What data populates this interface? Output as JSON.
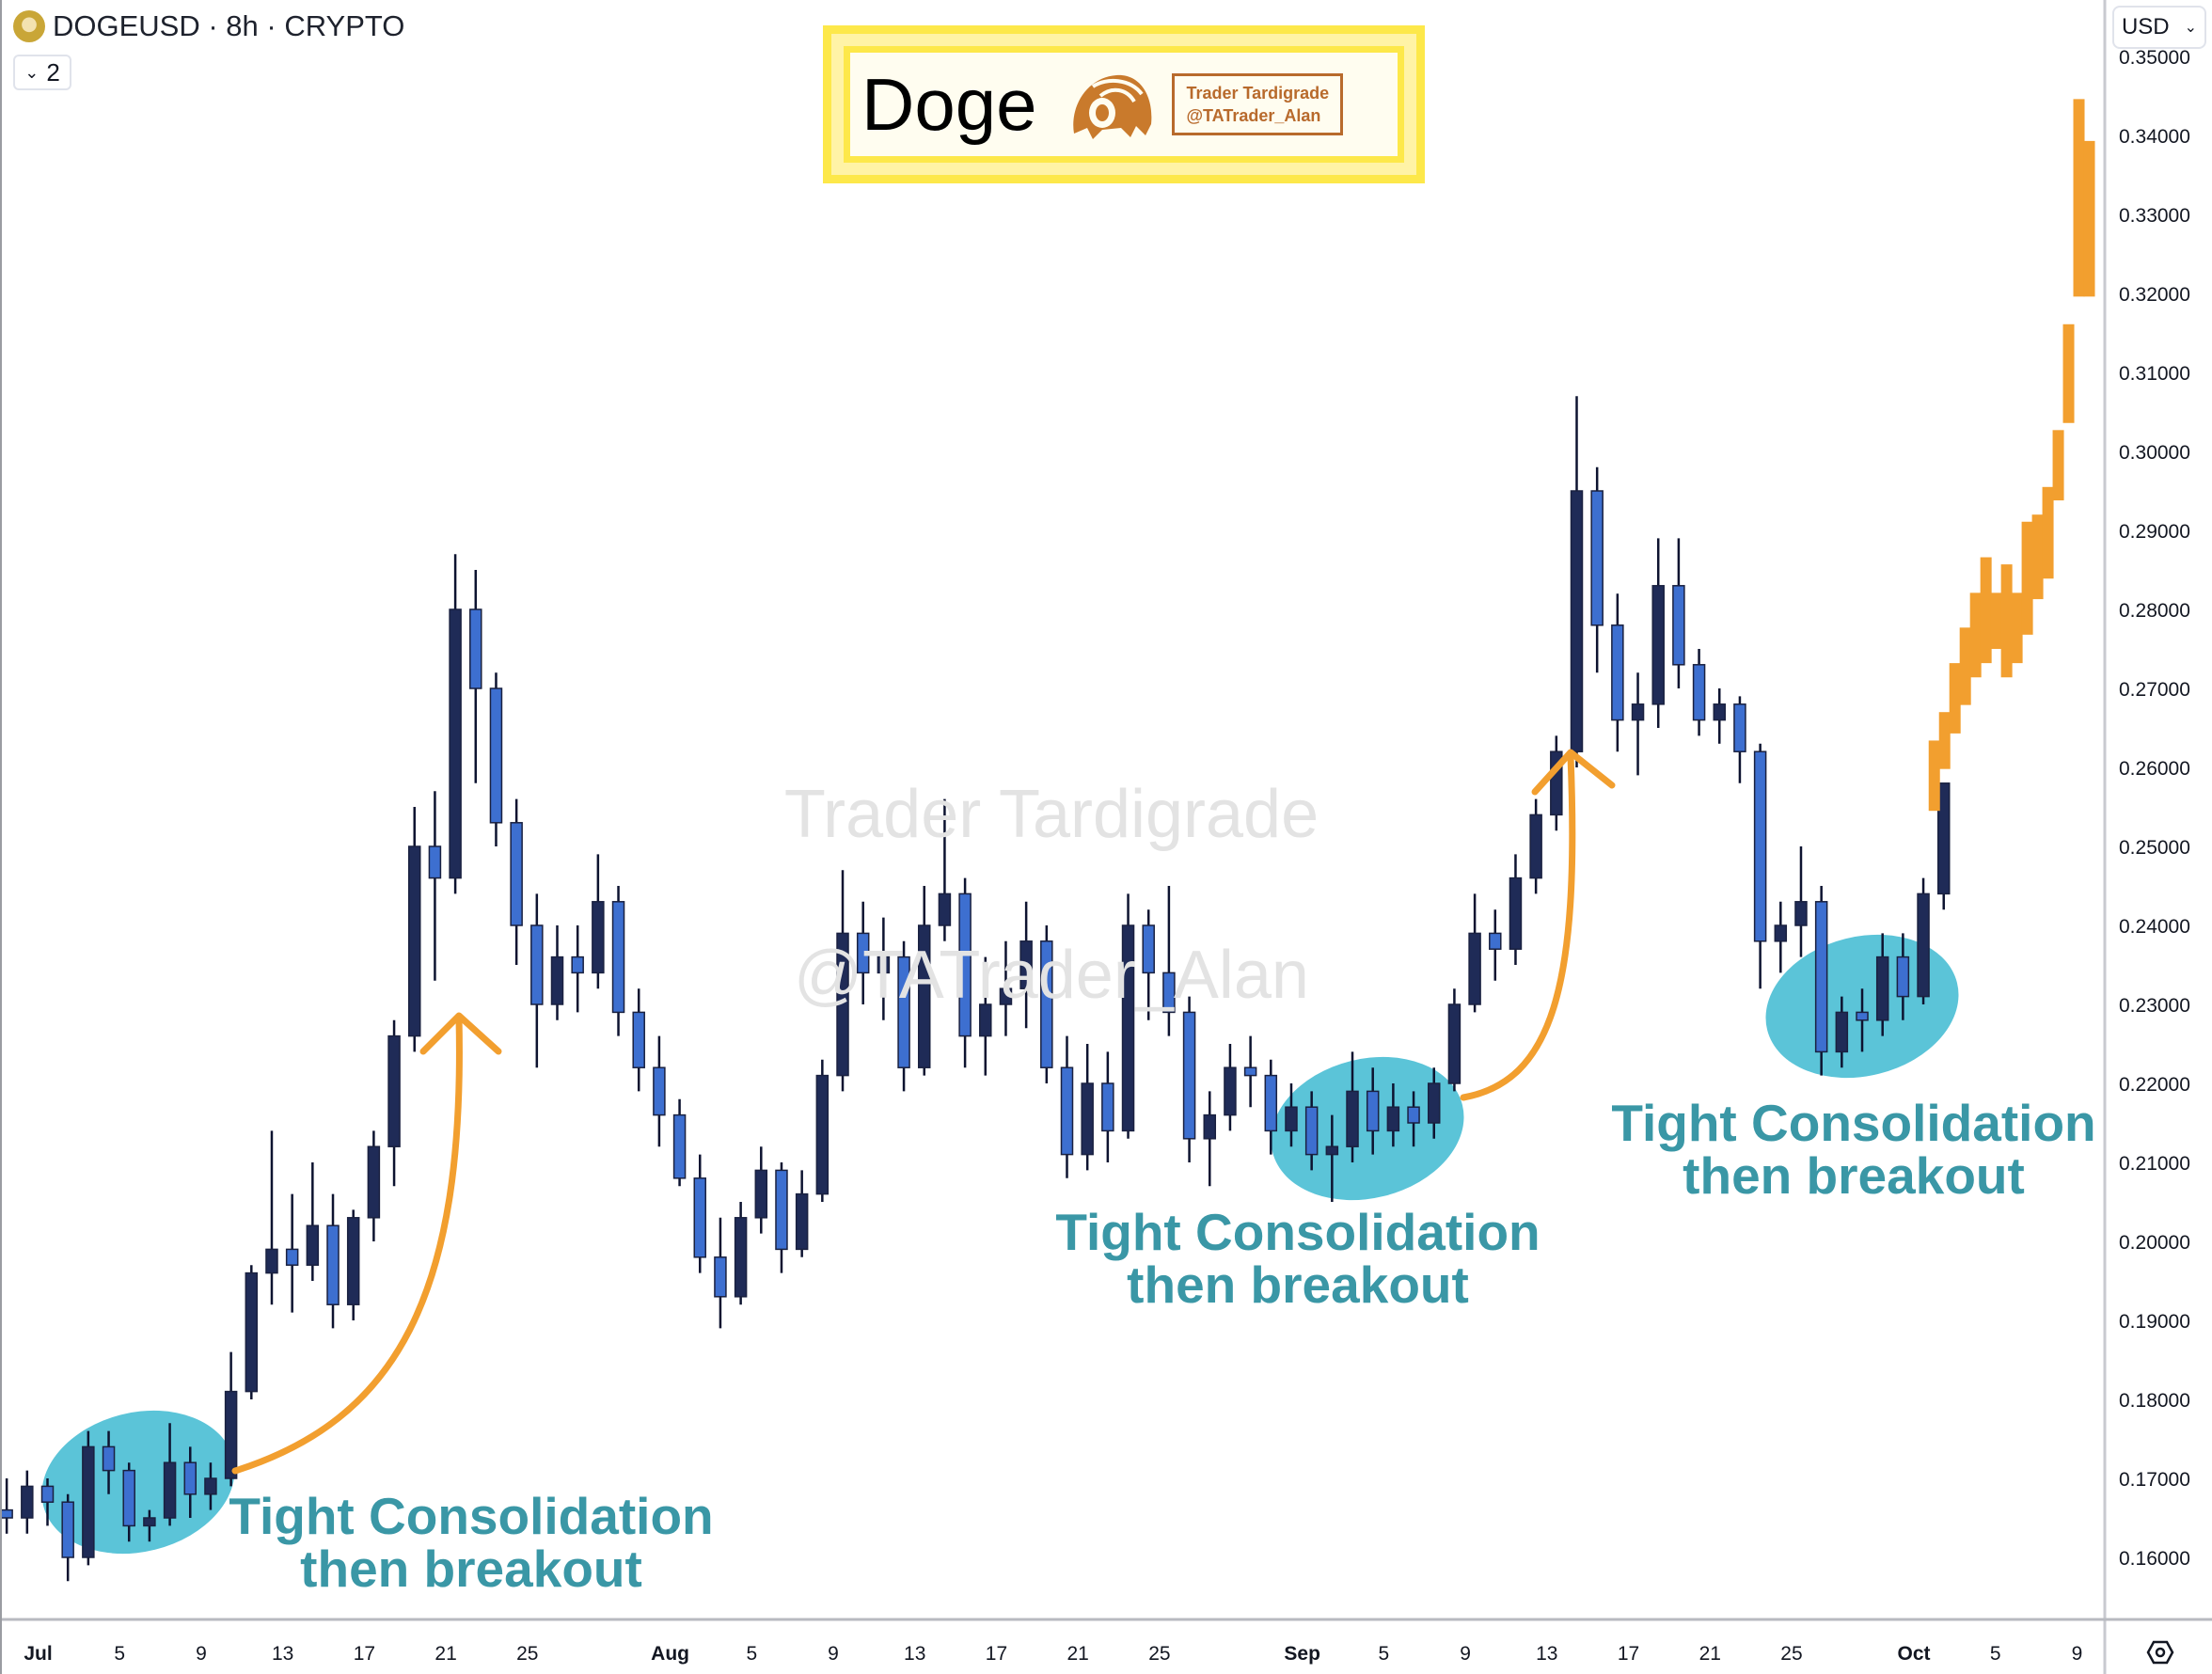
{
  "header": {
    "symbol_title": "DOGEUSD · 8h · CRYPTO",
    "indicator_count": "2",
    "currency": "USD"
  },
  "logo": {
    "title": "Doge",
    "brand_line1": "Trader Tardigrade",
    "brand_line2": "@TATrader_Alan"
  },
  "watermark": {
    "line1": "Trader Tardigrade",
    "line2": "@TATrader_Alan"
  },
  "annotations": [
    {
      "line1": "Tight Consolidation",
      "line2": "then breakout"
    },
    {
      "line1": "Tight Consolidation",
      "line2": "then breakout"
    },
    {
      "line1": "Tight Consolidation",
      "line2": "then breakout"
    }
  ],
  "colors": {
    "candle_up": "#1f2b57",
    "candle_down": "#3d6fd0",
    "projection": "#f29f2f",
    "highlight": "#5bc4d8",
    "annotation_text": "#3a97a6",
    "arrow": "#f29f2f"
  },
  "chart_data": {
    "type": "candlestick",
    "title": "",
    "xlabel": "",
    "ylabel": "",
    "ylim": [
      0.155,
      0.35
    ],
    "y_ticks": [
      "0.16000",
      "0.17000",
      "0.18000",
      "0.19000",
      "0.20000",
      "0.21000",
      "0.22000",
      "0.23000",
      "0.24000",
      "0.25000",
      "0.26000",
      "0.27000",
      "0.28000",
      "0.29000",
      "0.30000",
      "0.31000",
      "0.32000",
      "0.33000",
      "0.34000",
      "0.35000"
    ],
    "x_ticks": [
      {
        "label": "Jul",
        "date": "Jul 1"
      },
      {
        "label": "5",
        "date": "Jul 5"
      },
      {
        "label": "9",
        "date": "Jul 9"
      },
      {
        "label": "13",
        "date": "Jul 13"
      },
      {
        "label": "17",
        "date": "Jul 17"
      },
      {
        "label": "21",
        "date": "Jul 21"
      },
      {
        "label": "25",
        "date": "Jul 25"
      },
      {
        "label": "Aug",
        "date": "Aug 1"
      },
      {
        "label": "5",
        "date": "Aug 5"
      },
      {
        "label": "9",
        "date": "Aug 9"
      },
      {
        "label": "13",
        "date": "Aug 13"
      },
      {
        "label": "17",
        "date": "Aug 17"
      },
      {
        "label": "21",
        "date": "Aug 21"
      },
      {
        "label": "25",
        "date": "Aug 25"
      },
      {
        "label": "Sep",
        "date": "Sep 1"
      },
      {
        "label": "5",
        "date": "Sep 5"
      },
      {
        "label": "9",
        "date": "Sep 9"
      },
      {
        "label": "13",
        "date": "Sep 13"
      },
      {
        "label": "17",
        "date": "Sep 17"
      },
      {
        "label": "21",
        "date": "Sep 21"
      },
      {
        "label": "25",
        "date": "Sep 25"
      },
      {
        "label": "Oct",
        "date": "Oct 1"
      },
      {
        "label": "5",
        "date": "Oct 5"
      },
      {
        "label": "9",
        "date": "Oct 9"
      }
    ],
    "candles_start": "Jun 29",
    "candles_ohlc": [
      [
        0.166,
        0.17,
        0.163,
        0.165
      ],
      [
        0.165,
        0.171,
        0.163,
        0.169
      ],
      [
        0.169,
        0.17,
        0.164,
        0.167
      ],
      [
        0.167,
        0.168,
        0.157,
        0.16
      ],
      [
        0.16,
        0.176,
        0.159,
        0.174
      ],
      [
        0.174,
        0.176,
        0.168,
        0.171
      ],
      [
        0.171,
        0.172,
        0.162,
        0.164
      ],
      [
        0.164,
        0.166,
        0.162,
        0.165
      ],
      [
        0.165,
        0.177,
        0.164,
        0.172
      ],
      [
        0.172,
        0.174,
        0.165,
        0.168
      ],
      [
        0.168,
        0.172,
        0.166,
        0.17
      ],
      [
        0.17,
        0.186,
        0.169,
        0.181
      ],
      [
        0.181,
        0.197,
        0.18,
        0.196
      ],
      [
        0.196,
        0.214,
        0.192,
        0.199
      ],
      [
        0.199,
        0.206,
        0.191,
        0.197
      ],
      [
        0.197,
        0.21,
        0.195,
        0.202
      ],
      [
        0.202,
        0.206,
        0.189,
        0.192
      ],
      [
        0.192,
        0.204,
        0.19,
        0.203
      ],
      [
        0.203,
        0.214,
        0.2,
        0.212
      ],
      [
        0.212,
        0.228,
        0.207,
        0.226
      ],
      [
        0.226,
        0.255,
        0.224,
        0.25
      ],
      [
        0.25,
        0.257,
        0.233,
        0.246
      ],
      [
        0.246,
        0.287,
        0.244,
        0.28
      ],
      [
        0.28,
        0.285,
        0.258,
        0.27
      ],
      [
        0.27,
        0.272,
        0.25,
        0.253
      ],
      [
        0.253,
        0.256,
        0.235,
        0.24
      ],
      [
        0.24,
        0.244,
        0.222,
        0.23
      ],
      [
        0.23,
        0.24,
        0.228,
        0.236
      ],
      [
        0.236,
        0.24,
        0.229,
        0.234
      ],
      [
        0.234,
        0.249,
        0.232,
        0.243
      ],
      [
        0.243,
        0.245,
        0.226,
        0.229
      ],
      [
        0.229,
        0.232,
        0.219,
        0.222
      ],
      [
        0.222,
        0.226,
        0.212,
        0.216
      ],
      [
        0.216,
        0.218,
        0.207,
        0.208
      ],
      [
        0.208,
        0.211,
        0.196,
        0.198
      ],
      [
        0.198,
        0.203,
        0.189,
        0.193
      ],
      [
        0.193,
        0.205,
        0.192,
        0.203
      ],
      [
        0.203,
        0.212,
        0.201,
        0.209
      ],
      [
        0.209,
        0.21,
        0.196,
        0.199
      ],
      [
        0.199,
        0.209,
        0.198,
        0.206
      ],
      [
        0.206,
        0.223,
        0.205,
        0.221
      ],
      [
        0.221,
        0.247,
        0.219,
        0.239
      ],
      [
        0.239,
        0.243,
        0.23,
        0.234
      ],
      [
        0.234,
        0.241,
        0.228,
        0.236
      ],
      [
        0.236,
        0.238,
        0.219,
        0.222
      ],
      [
        0.222,
        0.245,
        0.221,
        0.24
      ],
      [
        0.24,
        0.256,
        0.238,
        0.244
      ],
      [
        0.244,
        0.246,
        0.222,
        0.226
      ],
      [
        0.226,
        0.236,
        0.221,
        0.23
      ],
      [
        0.23,
        0.238,
        0.226,
        0.232
      ],
      [
        0.232,
        0.243,
        0.227,
        0.238
      ],
      [
        0.238,
        0.24,
        0.22,
        0.222
      ],
      [
        0.222,
        0.226,
        0.208,
        0.211
      ],
      [
        0.211,
        0.225,
        0.209,
        0.22
      ],
      [
        0.22,
        0.224,
        0.21,
        0.214
      ],
      [
        0.214,
        0.244,
        0.213,
        0.24
      ],
      [
        0.24,
        0.242,
        0.228,
        0.234
      ],
      [
        0.234,
        0.245,
        0.226,
        0.229
      ],
      [
        0.229,
        0.231,
        0.21,
        0.213
      ],
      [
        0.213,
        0.219,
        0.207,
        0.216
      ],
      [
        0.216,
        0.225,
        0.214,
        0.222
      ],
      [
        0.222,
        0.226,
        0.217,
        0.221
      ],
      [
        0.221,
        0.223,
        0.211,
        0.214
      ],
      [
        0.214,
        0.22,
        0.212,
        0.217
      ],
      [
        0.217,
        0.219,
        0.209,
        0.211
      ],
      [
        0.211,
        0.216,
        0.205,
        0.212
      ],
      [
        0.212,
        0.224,
        0.21,
        0.219
      ],
      [
        0.219,
        0.222,
        0.211,
        0.214
      ],
      [
        0.214,
        0.22,
        0.212,
        0.217
      ],
      [
        0.217,
        0.219,
        0.212,
        0.215
      ],
      [
        0.215,
        0.222,
        0.213,
        0.22
      ],
      [
        0.22,
        0.232,
        0.219,
        0.23
      ],
      [
        0.23,
        0.244,
        0.229,
        0.239
      ],
      [
        0.239,
        0.242,
        0.233,
        0.237
      ],
      [
        0.237,
        0.249,
        0.235,
        0.246
      ],
      [
        0.246,
        0.256,
        0.244,
        0.254
      ],
      [
        0.254,
        0.264,
        0.252,
        0.262
      ],
      [
        0.262,
        0.307,
        0.26,
        0.295
      ],
      [
        0.295,
        0.298,
        0.272,
        0.278
      ],
      [
        0.278,
        0.282,
        0.262,
        0.266
      ],
      [
        0.266,
        0.272,
        0.259,
        0.268
      ],
      [
        0.268,
        0.289,
        0.265,
        0.283
      ],
      [
        0.283,
        0.289,
        0.27,
        0.273
      ],
      [
        0.273,
        0.275,
        0.264,
        0.266
      ],
      [
        0.266,
        0.27,
        0.263,
        0.268
      ],
      [
        0.268,
        0.269,
        0.258,
        0.262
      ],
      [
        0.262,
        0.263,
        0.232,
        0.238
      ],
      [
        0.238,
        0.243,
        0.234,
        0.24
      ],
      [
        0.24,
        0.25,
        0.236,
        0.243
      ],
      [
        0.243,
        0.245,
        0.221,
        0.224
      ],
      [
        0.224,
        0.231,
        0.222,
        0.229
      ],
      [
        0.229,
        0.232,
        0.224,
        0.228
      ],
      [
        0.228,
        0.239,
        0.226,
        0.236
      ],
      [
        0.236,
        0.239,
        0.228,
        0.231
      ],
      [
        0.231,
        0.246,
        0.23,
        0.244
      ],
      [
        0.244,
        0.258,
        0.242,
        0.258
      ]
    ],
    "projection": {
      "start": "Oct 2",
      "end": "Oct 9",
      "bars_low_high": [
        [
          0.2545,
          0.2634
        ],
        [
          0.2598,
          0.267
        ],
        [
          0.2643,
          0.2732
        ],
        [
          0.2679,
          0.2777
        ],
        [
          0.2714,
          0.2821
        ],
        [
          0.2732,
          0.2866
        ],
        [
          0.275,
          0.2821
        ],
        [
          0.2714,
          0.2857
        ],
        [
          0.2732,
          0.2821
        ],
        [
          0.2768,
          0.2911
        ],
        [
          0.2813,
          0.292
        ],
        [
          0.2839,
          0.2955
        ],
        [
          0.2938,
          0.3027
        ],
        [
          0.3036,
          0.3161
        ],
        [
          0.3196,
          0.3446
        ],
        [
          0.3196,
          0.3393
        ]
      ]
    },
    "highlighted_consolidations": [
      [
        "Jul 1",
        "Jul 10"
      ],
      [
        "Sep 1",
        "Sep 8"
      ],
      [
        "Sep 25",
        "Oct 1"
      ]
    ],
    "grid": false,
    "legend": "none"
  }
}
